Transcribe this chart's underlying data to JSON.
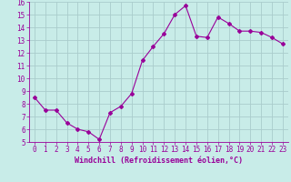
{
  "x": [
    0,
    1,
    2,
    3,
    4,
    5,
    6,
    7,
    8,
    9,
    10,
    11,
    12,
    13,
    14,
    15,
    16,
    17,
    18,
    19,
    20,
    21,
    22,
    23
  ],
  "y": [
    8.5,
    7.5,
    7.5,
    6.5,
    6.0,
    5.8,
    5.2,
    7.3,
    7.8,
    8.8,
    11.4,
    12.5,
    13.5,
    15.0,
    15.7,
    13.3,
    13.2,
    14.8,
    14.3,
    13.7,
    13.7,
    13.6,
    13.2,
    12.7
  ],
  "line_color": "#990099",
  "marker": "D",
  "marker_size": 2,
  "bg_color": "#c8ece8",
  "grid_color": "#aacccc",
  "xlabel": "Windchill (Refroidissement éolien,°C)",
  "xlabel_color": "#990099",
  "tick_color": "#990099",
  "ylim": [
    5,
    16
  ],
  "xlim": [
    -0.5,
    23.5
  ],
  "yticks": [
    5,
    6,
    7,
    8,
    9,
    10,
    11,
    12,
    13,
    14,
    15,
    16
  ],
  "xticks": [
    0,
    1,
    2,
    3,
    4,
    5,
    6,
    7,
    8,
    9,
    10,
    11,
    12,
    13,
    14,
    15,
    16,
    17,
    18,
    19,
    20,
    21,
    22,
    23
  ],
  "xtick_labels": [
    "0",
    "1",
    "2",
    "3",
    "4",
    "5",
    "6",
    "7",
    "8",
    "9",
    "10",
    "11",
    "12",
    "13",
    "14",
    "15",
    "16",
    "17",
    "18",
    "19",
    "20",
    "21",
    "22",
    "23"
  ],
  "axis_fontsize": 5.5,
  "label_fontsize": 6.0,
  "linewidth": 0.8
}
